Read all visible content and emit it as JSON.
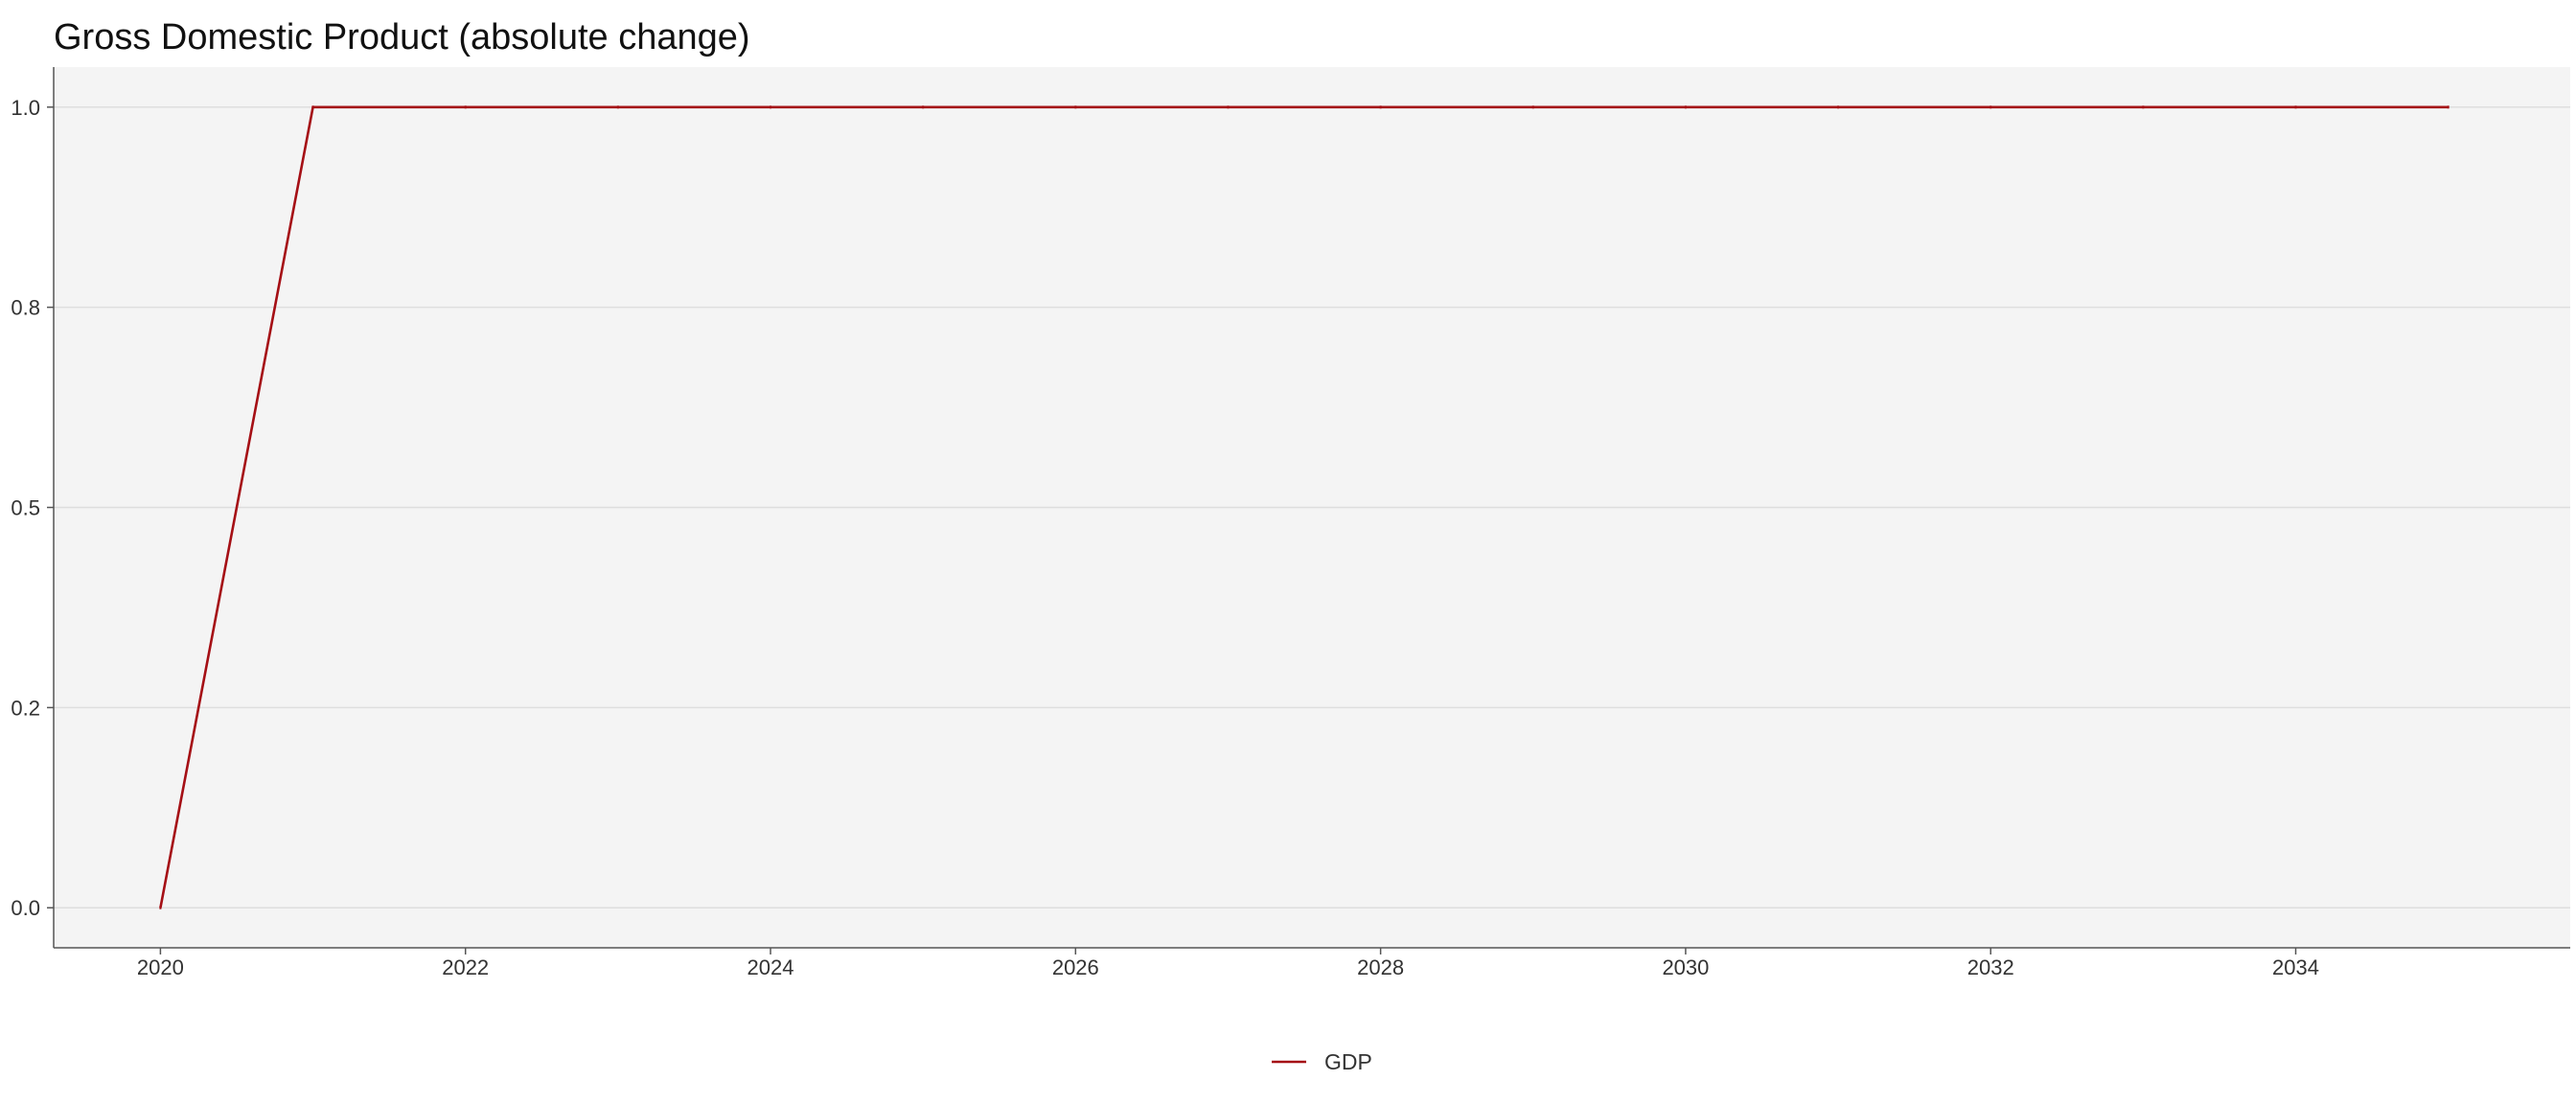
{
  "chart_data": {
    "type": "line",
    "title": "Gross Domestic Product (absolute change)",
    "xlabel": "",
    "ylabel": "",
    "x": [
      2020,
      2021,
      2022,
      2023,
      2024,
      2025,
      2026,
      2027,
      2028,
      2029,
      2030,
      2031,
      2032,
      2033,
      2034,
      2035
    ],
    "series": [
      {
        "name": "GDP",
        "color": "#a50f15",
        "values": [
          0,
          1,
          1,
          1,
          1,
          1,
          1,
          1,
          1,
          1,
          1,
          1,
          1,
          1,
          1,
          1
        ]
      }
    ],
    "xlim": [
      2019.3,
      2035.8
    ],
    "ylim": [
      -0.05,
      1.05
    ],
    "x_ticks": [
      2020,
      2022,
      2024,
      2026,
      2028,
      2030,
      2032,
      2034
    ],
    "y_ticks": [
      0.0,
      0.25,
      0.5,
      0.75,
      1.0
    ],
    "y_tick_labels": [
      "0.0",
      "0.2",
      "0.5",
      "0.8",
      "1.0"
    ],
    "grid": "horizontal",
    "legend_position": "bottom-center",
    "colors": {
      "panel_background": "#f4f4f4",
      "grid": "#dedede",
      "axis": "#555555"
    }
  }
}
